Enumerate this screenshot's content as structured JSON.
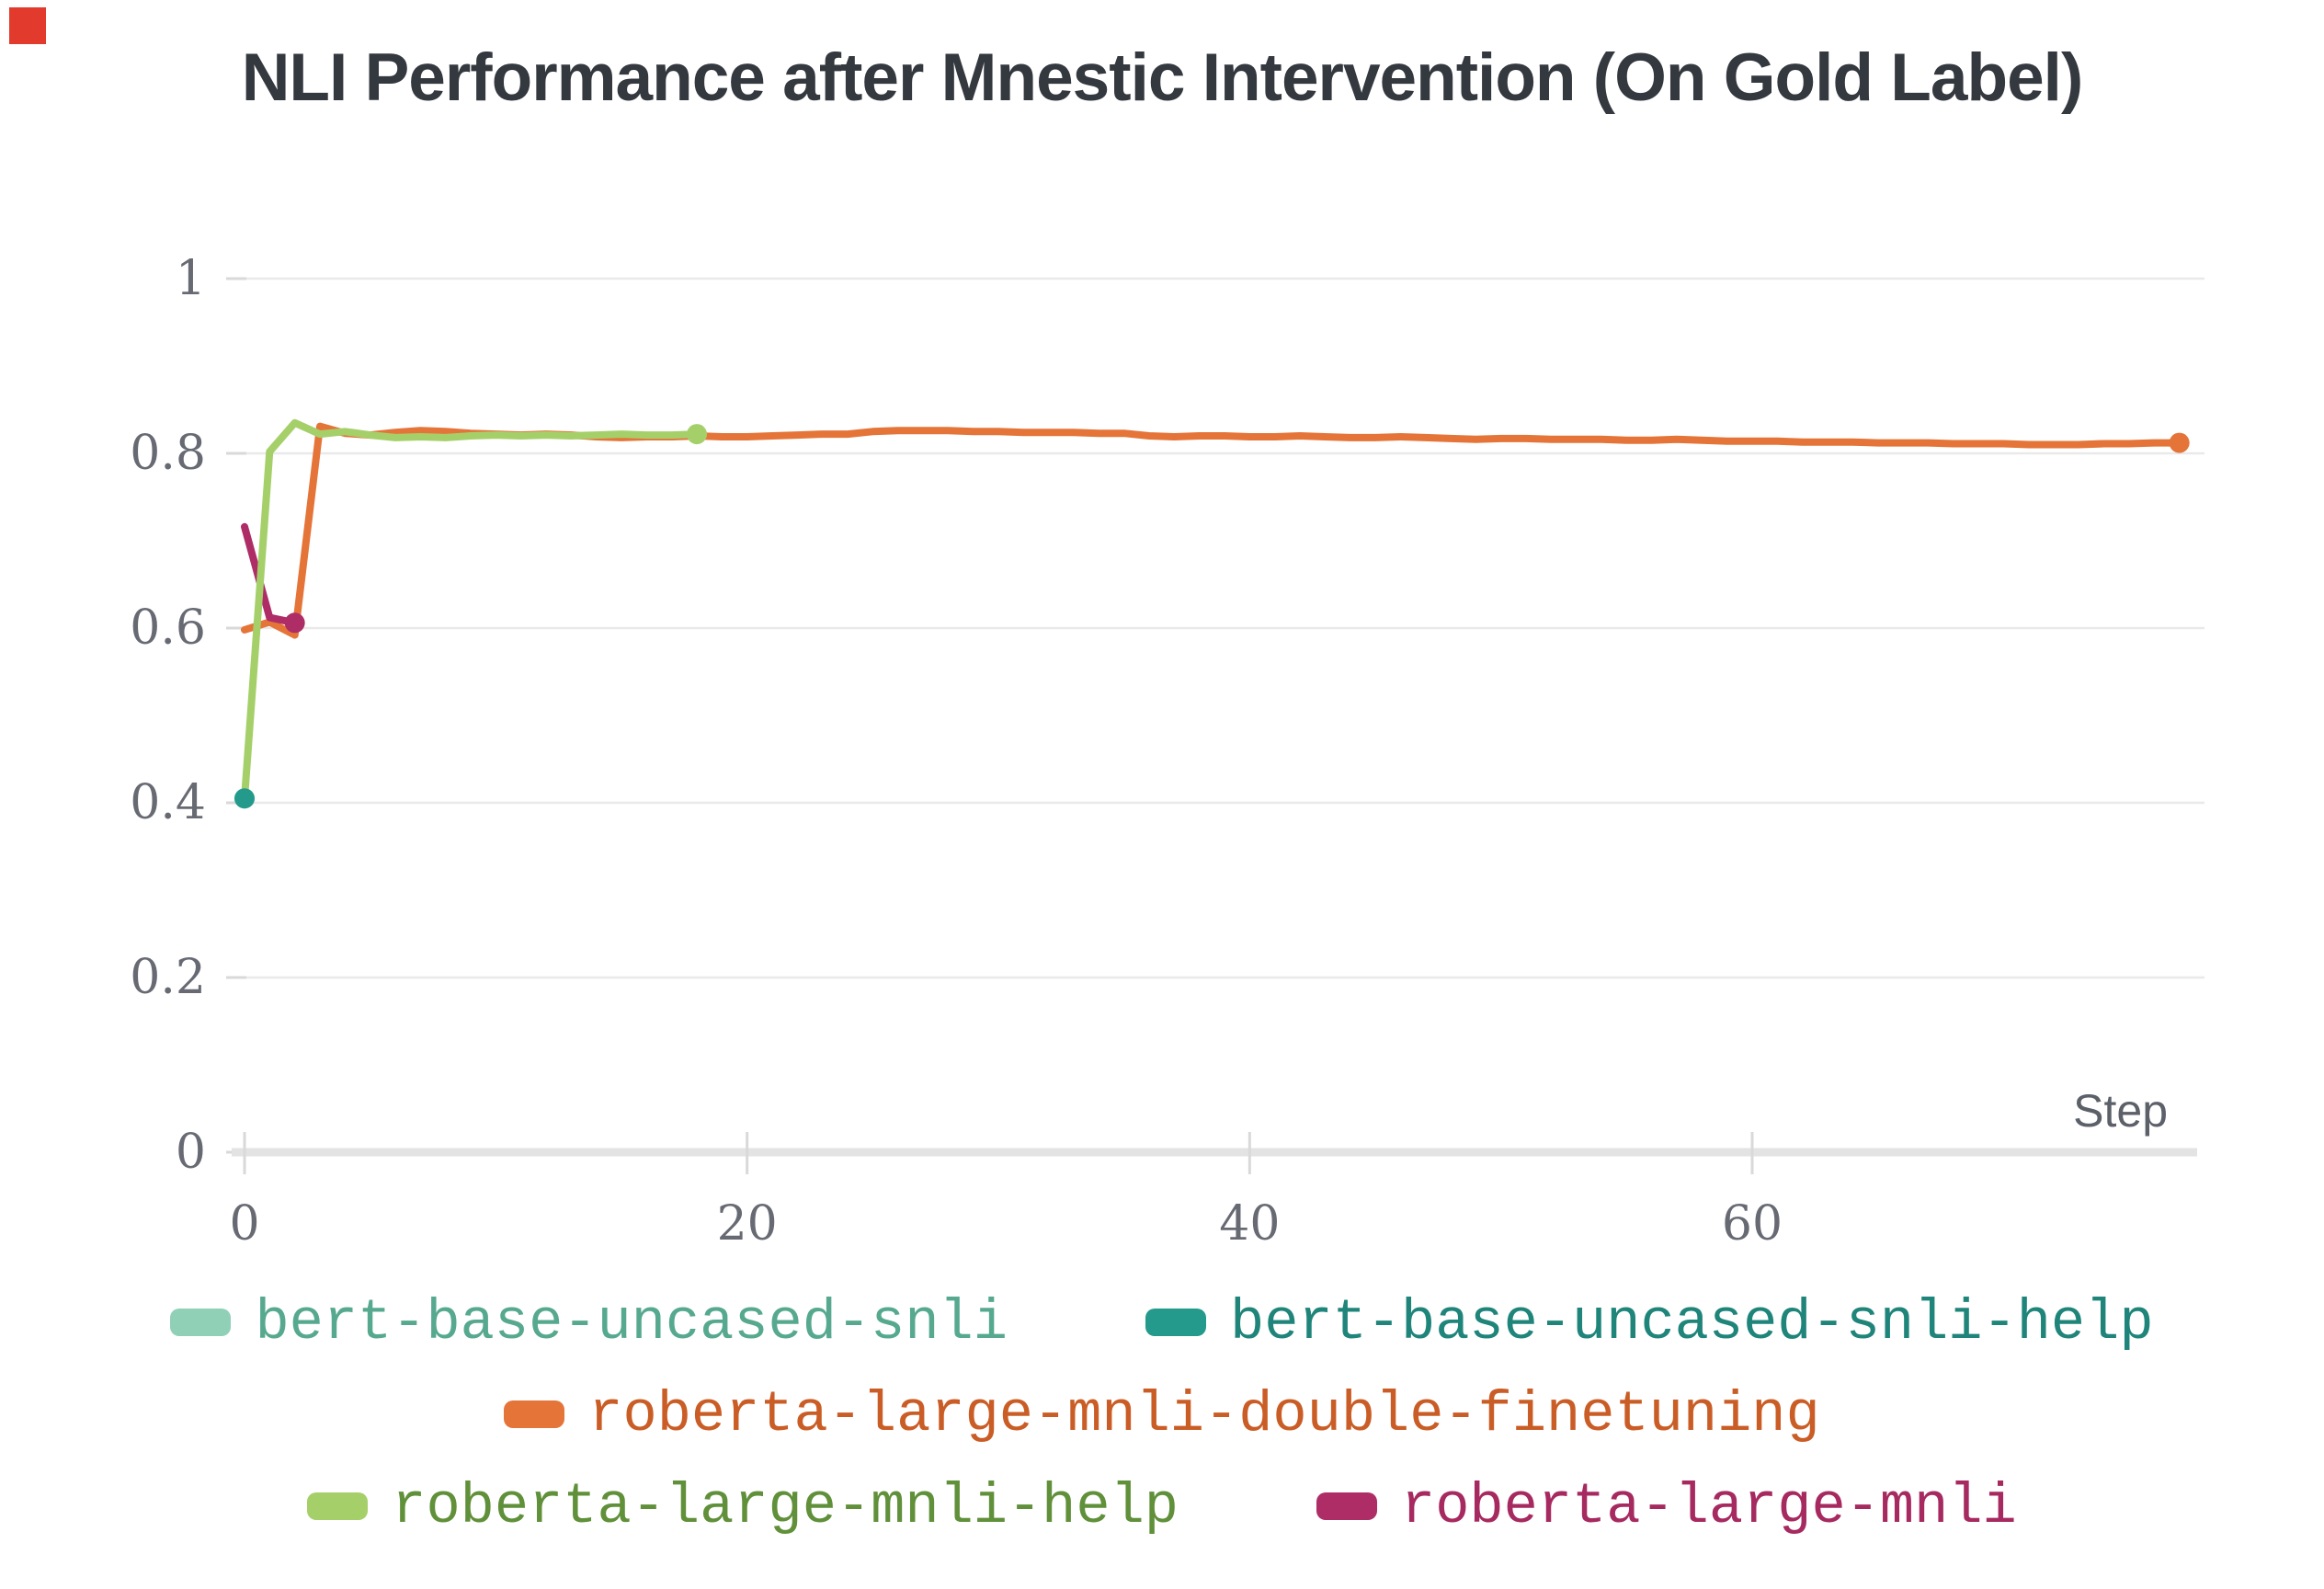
{
  "page": {
    "corner_marker_color": "#e23a2c",
    "background_color": "#ffffff"
  },
  "chart_data": {
    "type": "line",
    "title": "NLI Performance after Mnestic Intervention (On Gold Label)",
    "xlabel": "Step",
    "ylabel": "",
    "xlim": [
      0,
      78
    ],
    "ylim": [
      0,
      1
    ],
    "x_ticks": [
      0,
      20,
      40,
      60
    ],
    "y_ticks": [
      0,
      0.2,
      0.4,
      0.6,
      0.8,
      1
    ],
    "grid": "horizontal",
    "legend_position": "bottom",
    "colors": {
      "grid_line": "#e9e9e9",
      "axis_line": "#e3e3e3",
      "tick_mark": "#d9d9d9",
      "tick_text": "#676a73",
      "title_text": "#34383f"
    },
    "series": [
      {
        "name": "bert-base-uncased-snli",
        "color": "#8fd0b6",
        "text_color": "#56a98f",
        "end_dot": true,
        "points": [
          [
            0,
            0.405
          ]
        ]
      },
      {
        "name": "roberta-large-mnli-double-finetuning",
        "color": "#e57439",
        "text_color": "#ca5d26",
        "end_dot": true,
        "points": [
          [
            0,
            0.598
          ],
          [
            1,
            0.607
          ],
          [
            2,
            0.592
          ],
          [
            3,
            0.831
          ],
          [
            4,
            0.823
          ],
          [
            5,
            0.821
          ],
          [
            6,
            0.824
          ],
          [
            7,
            0.826
          ],
          [
            8,
            0.825
          ],
          [
            9,
            0.823
          ],
          [
            10,
            0.822
          ],
          [
            11,
            0.821
          ],
          [
            12,
            0.822
          ],
          [
            13,
            0.821
          ],
          [
            14,
            0.819
          ],
          [
            15,
            0.818
          ],
          [
            16,
            0.819
          ],
          [
            17,
            0.819
          ],
          [
            18,
            0.82
          ],
          [
            19,
            0.819
          ],
          [
            20,
            0.819
          ],
          [
            21,
            0.82
          ],
          [
            22,
            0.821
          ],
          [
            23,
            0.822
          ],
          [
            24,
            0.822
          ],
          [
            25,
            0.825
          ],
          [
            26,
            0.826
          ],
          [
            27,
            0.826
          ],
          [
            28,
            0.826
          ],
          [
            29,
            0.825
          ],
          [
            30,
            0.825
          ],
          [
            31,
            0.824
          ],
          [
            32,
            0.824
          ],
          [
            33,
            0.824
          ],
          [
            34,
            0.823
          ],
          [
            35,
            0.823
          ],
          [
            36,
            0.82
          ],
          [
            37,
            0.819
          ],
          [
            38,
            0.82
          ],
          [
            39,
            0.82
          ],
          [
            40,
            0.819
          ],
          [
            41,
            0.819
          ],
          [
            42,
            0.82
          ],
          [
            43,
            0.819
          ],
          [
            44,
            0.818
          ],
          [
            45,
            0.818
          ],
          [
            46,
            0.819
          ],
          [
            47,
            0.818
          ],
          [
            48,
            0.817
          ],
          [
            49,
            0.816
          ],
          [
            50,
            0.817
          ],
          [
            51,
            0.817
          ],
          [
            52,
            0.816
          ],
          [
            53,
            0.816
          ],
          [
            54,
            0.816
          ],
          [
            55,
            0.815
          ],
          [
            56,
            0.815
          ],
          [
            57,
            0.816
          ],
          [
            58,
            0.815
          ],
          [
            59,
            0.814
          ],
          [
            60,
            0.814
          ],
          [
            61,
            0.814
          ],
          [
            62,
            0.813
          ],
          [
            63,
            0.813
          ],
          [
            64,
            0.813
          ],
          [
            65,
            0.812
          ],
          [
            66,
            0.812
          ],
          [
            67,
            0.812
          ],
          [
            68,
            0.811
          ],
          [
            69,
            0.811
          ],
          [
            70,
            0.811
          ],
          [
            71,
            0.81
          ],
          [
            72,
            0.81
          ],
          [
            73,
            0.81
          ],
          [
            74,
            0.811
          ],
          [
            75,
            0.811
          ],
          [
            76,
            0.812
          ],
          [
            77,
            0.812
          ]
        ]
      },
      {
        "name": "roberta-large-mnli",
        "color": "#ae2d67",
        "text_color": "#a62a60",
        "end_dot": true,
        "points": [
          [
            0,
            0.716
          ],
          [
            1,
            0.612
          ],
          [
            2,
            0.606
          ]
        ]
      },
      {
        "name": "roberta-large-mnli-help",
        "color": "#a5d069",
        "text_color": "#60903a",
        "end_dot": true,
        "points": [
          [
            0,
            0.405
          ],
          [
            1,
            0.802
          ],
          [
            2,
            0.835
          ],
          [
            3,
            0.822
          ],
          [
            4,
            0.825
          ],
          [
            5,
            0.821
          ],
          [
            6,
            0.818
          ],
          [
            7,
            0.819
          ],
          [
            8,
            0.818
          ],
          [
            9,
            0.82
          ],
          [
            10,
            0.821
          ],
          [
            11,
            0.82
          ],
          [
            12,
            0.821
          ],
          [
            13,
            0.82
          ],
          [
            14,
            0.821
          ],
          [
            15,
            0.822
          ],
          [
            16,
            0.821
          ],
          [
            17,
            0.821
          ],
          [
            18,
            0.822
          ]
        ]
      },
      {
        "name": "bert-base-uncased-snli-help",
        "color": "#249a8c",
        "text_color": "#1f857b",
        "end_dot": true,
        "points": [
          [
            0,
            0.405
          ]
        ]
      }
    ],
    "legend_rows": [
      [
        "bert-base-uncased-snli",
        "bert-base-uncased-snli-help"
      ],
      [
        "roberta-large-mnli-double-finetuning"
      ],
      [
        "roberta-large-mnli-help",
        "roberta-large-mnli"
      ]
    ]
  }
}
